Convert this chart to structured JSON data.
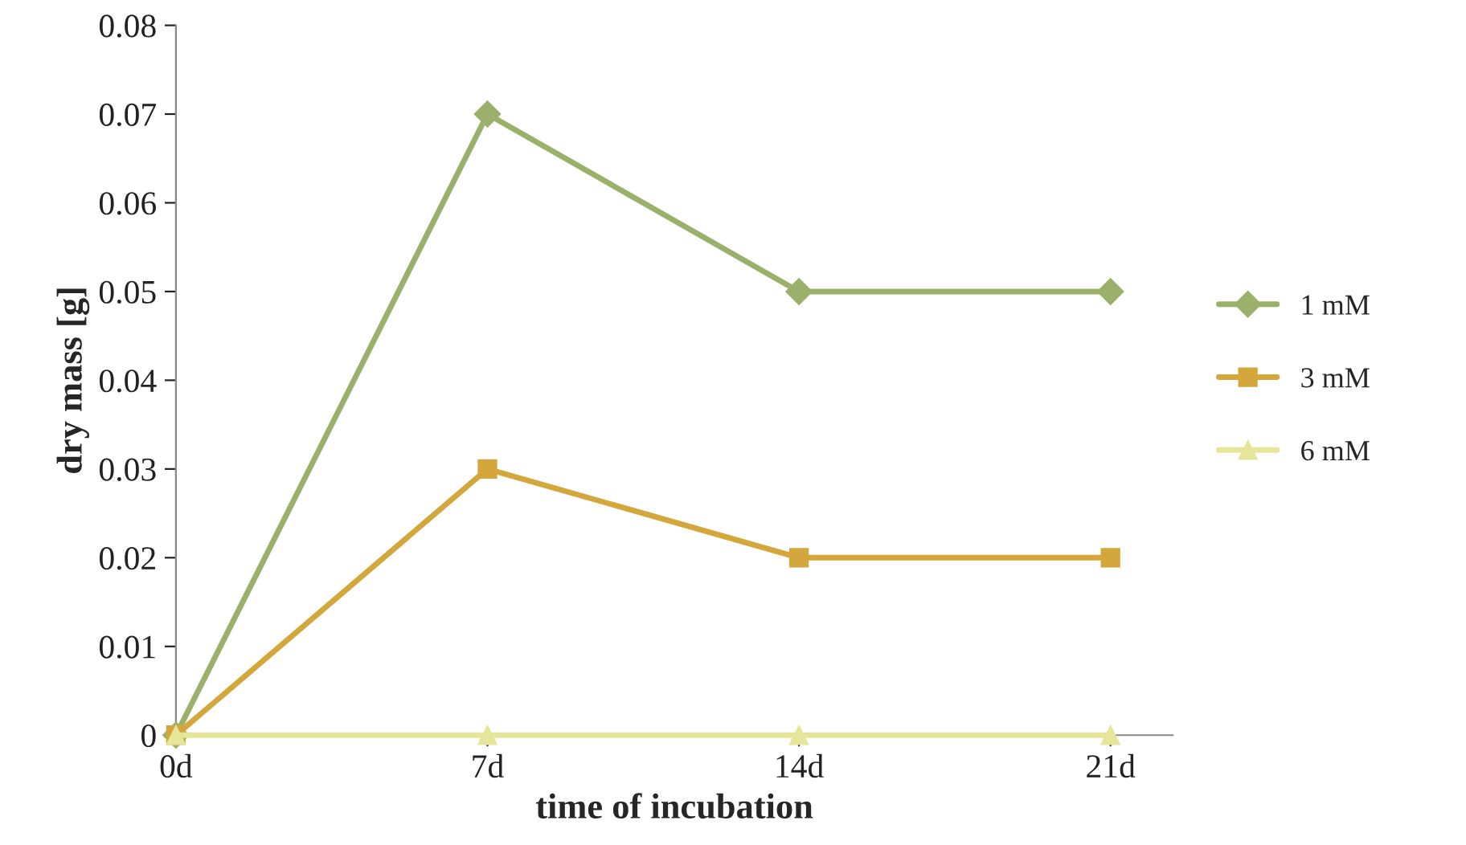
{
  "chart_data": {
    "type": "line",
    "xlabel": "time of incubation",
    "ylabel": "dry mass [g]",
    "categories": [
      "0d",
      "7d",
      "14d",
      "21d"
    ],
    "series": [
      {
        "name": "1 mM",
        "color": "#9bb16b",
        "marker": "diamond",
        "values": [
          0,
          0.07,
          0.05,
          0.05
        ]
      },
      {
        "name": "3 mM",
        "color": "#d4a73c",
        "marker": "square",
        "values": [
          0,
          0.03,
          0.02,
          0.02
        ]
      },
      {
        "name": "6 mM",
        "color": "#e6e69a",
        "marker": "triangle",
        "values": [
          0,
          0,
          0,
          0
        ]
      }
    ],
    "ylim": [
      0,
      0.08
    ],
    "yticks": [
      0,
      0.01,
      0.02,
      0.03,
      0.04,
      0.05,
      0.06,
      0.07,
      0.08
    ],
    "grid": false,
    "legend": "right",
    "line_style": "solid"
  }
}
